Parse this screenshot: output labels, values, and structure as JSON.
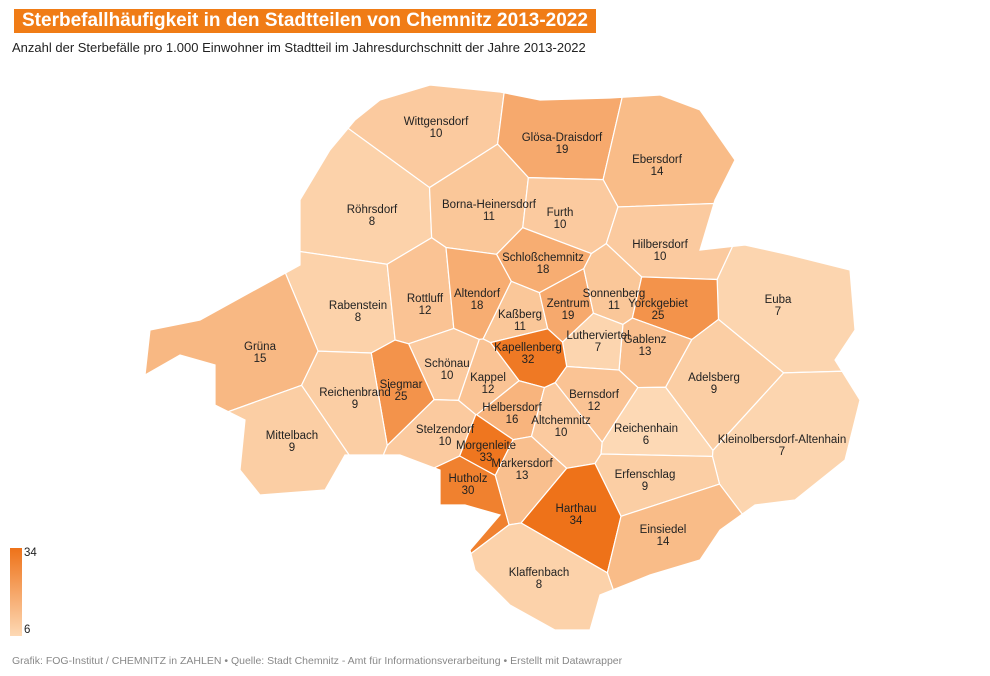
{
  "header": {
    "title": "Sterbefallhäufigkeit in den Stadtteilen von Chemnitz 2013-2022",
    "subtitle": "Anzahl der Sterbefälle pro 1.000 Einwohner im Stadtteil im Jahresdurchschnitt der Jahre 2013-2022"
  },
  "map": {
    "districts": [
      {
        "name": "Wittgensdorf",
        "value": 10
      },
      {
        "name": "Glösa-Draisdorf",
        "value": 19
      },
      {
        "name": "Ebersdorf",
        "value": 14
      },
      {
        "name": "Röhrsdorf",
        "value": 8
      },
      {
        "name": "Borna-Heinersdorf",
        "value": 11
      },
      {
        "name": "Furth",
        "value": 10
      },
      {
        "name": "Hilbersdorf",
        "value": 10
      },
      {
        "name": "Schloßchemnitz",
        "value": 18
      },
      {
        "name": "Euba",
        "value": 7
      },
      {
        "name": "Rabenstein",
        "value": 8
      },
      {
        "name": "Rottluff",
        "value": 12
      },
      {
        "name": "Altendorf",
        "value": 18
      },
      {
        "name": "Kaßberg",
        "value": 11
      },
      {
        "name": "Zentrum",
        "value": 19
      },
      {
        "name": "Sonnenberg",
        "value": 11
      },
      {
        "name": "Yorckgebiet",
        "value": 25
      },
      {
        "name": "Gablenz",
        "value": 13
      },
      {
        "name": "Lutherviertel",
        "value": 7
      },
      {
        "name": "Kapellenberg",
        "value": 32
      },
      {
        "name": "Grüna",
        "value": 15
      },
      {
        "name": "Schönau",
        "value": 10
      },
      {
        "name": "Kappel",
        "value": 12
      },
      {
        "name": "Siegmar",
        "value": 25
      },
      {
        "name": "Reichenbrand",
        "value": 9
      },
      {
        "name": "Adelsberg",
        "value": 9
      },
      {
        "name": "Bernsdorf",
        "value": 12
      },
      {
        "name": "Helbersdorf",
        "value": 16
      },
      {
        "name": "Altchemnitz",
        "value": 10
      },
      {
        "name": "Mittelbach",
        "value": 9
      },
      {
        "name": "Stelzendorf",
        "value": 10
      },
      {
        "name": "Reichenhain",
        "value": 6
      },
      {
        "name": "Kleinolbersdorf-Altenhain",
        "value": 7
      },
      {
        "name": "Morgenleite",
        "value": 33
      },
      {
        "name": "Markersdorf",
        "value": 13
      },
      {
        "name": "Erfenschlag",
        "value": 9
      },
      {
        "name": "Hutholz",
        "value": 30
      },
      {
        "name": "Harthau",
        "value": 34
      },
      {
        "name": "Einsiedel",
        "value": 14
      },
      {
        "name": "Klaffenbach",
        "value": 8
      }
    ],
    "legend": {
      "min": 6,
      "max": 34,
      "colors": [
        "#fdd9b5",
        "#ee7219"
      ]
    }
  },
  "footer": "Grafik: FOG-Institut / CHEMNITZ in ZAHLEN • Quelle: Stadt Chemnitz - Amt für Informationsverarbeitung • Erstellt mit Datawrapper"
}
